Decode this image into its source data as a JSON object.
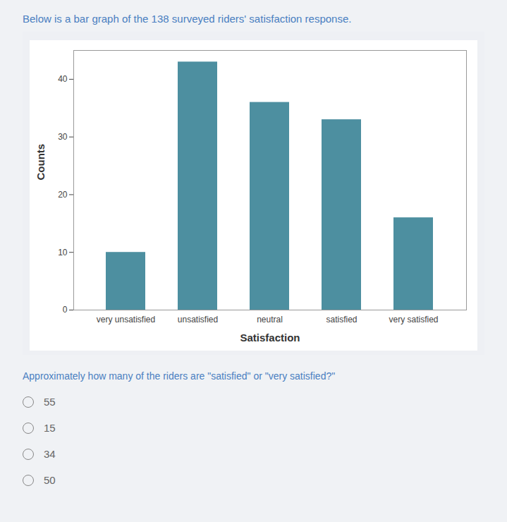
{
  "chart_data": {
    "type": "bar",
    "title": "Below is a bar graph of the 138 surveyed riders' satisfaction response.",
    "xlabel": "Satisfaction",
    "ylabel": "Counts",
    "categories": [
      "very unsatisfied",
      "unsatisfied",
      "neutral",
      "satisfied",
      "very satisfied"
    ],
    "values": [
      10,
      43,
      36,
      33,
      16
    ],
    "color": "#4d8fa0",
    "ylim": [
      0,
      45
    ],
    "yticks": [
      0,
      10,
      20,
      30,
      40
    ],
    "grid": false,
    "annotations": [
      "Approximately how many of the riders are \"satisfied\" or \"very satisfied?\"",
      "55",
      "15",
      "34",
      "50"
    ]
  }
}
